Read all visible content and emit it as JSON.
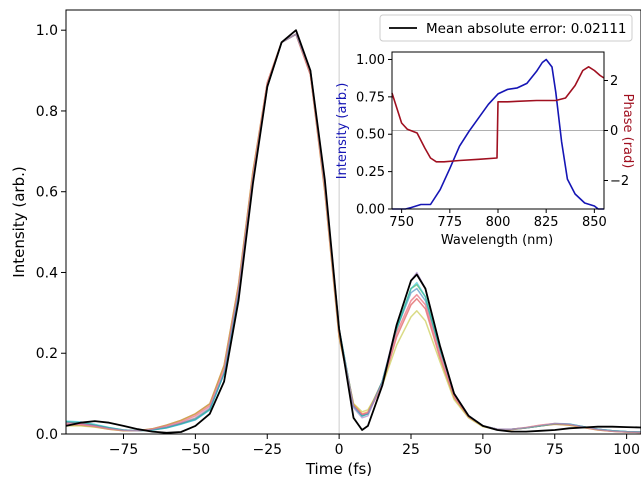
{
  "chart_data": [
    {
      "type": "line",
      "xlabel": "Time (fs)",
      "ylabel": "Intensity (arb.)",
      "xlim": [
        -95,
        105
      ],
      "ylim": [
        0,
        1.05
      ],
      "xticks": [
        -75,
        -50,
        -25,
        0,
        25,
        50,
        75,
        100
      ],
      "xtick_labels": [
        "−75",
        "−50",
        "−25",
        "0",
        "25",
        "50",
        "75",
        "100"
      ],
      "yticks": [
        0.0,
        0.2,
        0.4,
        0.6,
        0.8,
        1.0
      ],
      "ytick_labels": [
        "0.0",
        "0.2",
        "0.4",
        "0.6",
        "0.8",
        "1.0"
      ],
      "vline_x": 0,
      "legend": {
        "location": "top-right",
        "label": "Mean absolute error: 0.02111"
      },
      "series": [
        {
          "name": "Mean absolute error: 0.02111",
          "color": "#000000",
          "x": [
            -95,
            -90,
            -85,
            -80,
            -75,
            -70,
            -65,
            -60,
            -55,
            -50,
            -45,
            -40,
            -35,
            -30,
            -25,
            -20,
            -15,
            -10,
            -5,
            0,
            5,
            8,
            10,
            15,
            20,
            25,
            27,
            30,
            35,
            40,
            45,
            50,
            55,
            60,
            65,
            70,
            75,
            80,
            85,
            90,
            95,
            100,
            105
          ],
          "y": [
            0.02,
            0.028,
            0.032,
            0.028,
            0.02,
            0.012,
            0.006,
            0.003,
            0.005,
            0.02,
            0.05,
            0.13,
            0.33,
            0.62,
            0.86,
            0.97,
            1.0,
            0.9,
            0.63,
            0.26,
            0.04,
            0.01,
            0.02,
            0.12,
            0.27,
            0.38,
            0.395,
            0.36,
            0.22,
            0.1,
            0.045,
            0.02,
            0.01,
            0.006,
            0.006,
            0.008,
            0.01,
            0.014,
            0.016,
            0.018,
            0.018,
            0.017,
            0.016
          ]
        },
        {
          "name": "",
          "color": "#1f77b4",
          "x": [
            -95,
            -90,
            -85,
            -80,
            -75,
            -70,
            -65,
            -60,
            -55,
            -50,
            -45,
            -40,
            -35,
            -30,
            -25,
            -20,
            -15,
            -10,
            -5,
            0,
            5,
            8,
            10,
            15,
            20,
            25,
            27,
            30,
            35,
            40,
            45,
            50,
            55,
            60,
            65,
            70,
            75,
            80,
            85,
            90,
            95,
            100,
            105
          ],
          "y": [
            0.03,
            0.028,
            0.022,
            0.015,
            0.01,
            0.008,
            0.01,
            0.015,
            0.025,
            0.035,
            0.06,
            0.15,
            0.35,
            0.63,
            0.86,
            0.97,
            0.99,
            0.9,
            0.62,
            0.26,
            0.07,
            0.045,
            0.05,
            0.13,
            0.26,
            0.35,
            0.36,
            0.33,
            0.21,
            0.1,
            0.045,
            0.02,
            0.012,
            0.012,
            0.015,
            0.02,
            0.025,
            0.024,
            0.018,
            0.012,
            0.008,
            0.006,
            0.005
          ]
        },
        {
          "name": "",
          "color": "#ff7f0e",
          "x": [
            -95,
            -90,
            -85,
            -80,
            -75,
            -70,
            -65,
            -60,
            -55,
            -50,
            -45,
            -40,
            -35,
            -30,
            -25,
            -20,
            -15,
            -10,
            -5,
            0,
            5,
            8,
            10,
            15,
            20,
            25,
            27,
            30,
            35,
            40,
            45,
            50,
            55,
            60,
            65,
            70,
            75,
            80,
            85,
            90,
            95,
            100,
            105
          ],
          "y": [
            0.025,
            0.025,
            0.02,
            0.014,
            0.009,
            0.008,
            0.012,
            0.02,
            0.03,
            0.045,
            0.07,
            0.16,
            0.36,
            0.64,
            0.87,
            0.97,
            0.99,
            0.89,
            0.61,
            0.25,
            0.075,
            0.05,
            0.055,
            0.13,
            0.25,
            0.33,
            0.345,
            0.32,
            0.2,
            0.095,
            0.043,
            0.02,
            0.012,
            0.012,
            0.016,
            0.022,
            0.026,
            0.024,
            0.017,
            0.011,
            0.007,
            0.005,
            0.004
          ]
        },
        {
          "name": "",
          "color": "#2ca02c",
          "x": [
            -95,
            -90,
            -85,
            -80,
            -75,
            -70,
            -65,
            -60,
            -55,
            -50,
            -45,
            -40,
            -35,
            -30,
            -25,
            -20,
            -15,
            -10,
            -5,
            0,
            5,
            8,
            10,
            15,
            20,
            25,
            27,
            30,
            35,
            40,
            45,
            50,
            55,
            60,
            65,
            70,
            75,
            80,
            85,
            90,
            95,
            100,
            105
          ],
          "y": [
            0.03,
            0.028,
            0.022,
            0.015,
            0.01,
            0.008,
            0.01,
            0.016,
            0.026,
            0.038,
            0.062,
            0.15,
            0.35,
            0.63,
            0.86,
            0.97,
            0.99,
            0.9,
            0.62,
            0.26,
            0.07,
            0.045,
            0.05,
            0.13,
            0.26,
            0.36,
            0.37,
            0.34,
            0.21,
            0.1,
            0.045,
            0.02,
            0.012,
            0.012,
            0.015,
            0.02,
            0.025,
            0.024,
            0.018,
            0.012,
            0.008,
            0.006,
            0.005
          ]
        },
        {
          "name": "",
          "color": "#d62728",
          "x": [
            -95,
            -90,
            -85,
            -80,
            -75,
            -70,
            -65,
            -60,
            -55,
            -50,
            -45,
            -40,
            -35,
            -30,
            -25,
            -20,
            -15,
            -10,
            -5,
            0,
            5,
            8,
            10,
            15,
            20,
            25,
            27,
            30,
            35,
            40,
            45,
            50,
            55,
            60,
            65,
            70,
            75,
            80,
            85,
            90,
            95,
            100,
            105
          ],
          "y": [
            0.022,
            0.022,
            0.018,
            0.012,
            0.008,
            0.008,
            0.013,
            0.022,
            0.034,
            0.05,
            0.075,
            0.17,
            0.37,
            0.65,
            0.87,
            0.97,
            0.99,
            0.89,
            0.6,
            0.24,
            0.07,
            0.048,
            0.052,
            0.12,
            0.24,
            0.32,
            0.335,
            0.31,
            0.19,
            0.09,
            0.042,
            0.019,
            0.011,
            0.011,
            0.015,
            0.02,
            0.024,
            0.022,
            0.016,
            0.01,
            0.007,
            0.005,
            0.004
          ]
        },
        {
          "name": "",
          "color": "#9467bd",
          "x": [
            -95,
            -90,
            -85,
            -80,
            -75,
            -70,
            -65,
            -60,
            -55,
            -50,
            -45,
            -40,
            -35,
            -30,
            -25,
            -20,
            -15,
            -10,
            -5,
            0,
            5,
            8,
            10,
            15,
            20,
            25,
            27,
            30,
            35,
            40,
            45,
            50,
            55,
            60,
            65,
            70,
            75,
            80,
            85,
            90,
            95,
            100,
            105
          ],
          "y": [
            0.028,
            0.026,
            0.021,
            0.014,
            0.009,
            0.008,
            0.011,
            0.017,
            0.027,
            0.04,
            0.065,
            0.15,
            0.35,
            0.63,
            0.86,
            0.97,
            0.99,
            0.9,
            0.62,
            0.26,
            0.065,
            0.04,
            0.045,
            0.13,
            0.27,
            0.38,
            0.4,
            0.36,
            0.22,
            0.1,
            0.046,
            0.02,
            0.012,
            0.012,
            0.015,
            0.02,
            0.025,
            0.024,
            0.018,
            0.012,
            0.008,
            0.006,
            0.005
          ]
        },
        {
          "name": "",
          "color": "#bcbd22",
          "x": [
            -95,
            -90,
            -85,
            -80,
            -75,
            -70,
            -65,
            -60,
            -55,
            -50,
            -45,
            -40,
            -35,
            -30,
            -25,
            -20,
            -15,
            -10,
            -5,
            0,
            5,
            8,
            10,
            15,
            20,
            25,
            27,
            30,
            35,
            40,
            45,
            50,
            55,
            60,
            65,
            70,
            75,
            80,
            85,
            90,
            95,
            100,
            105
          ],
          "y": [
            0.02,
            0.02,
            0.017,
            0.012,
            0.008,
            0.008,
            0.013,
            0.022,
            0.034,
            0.05,
            0.075,
            0.17,
            0.37,
            0.65,
            0.87,
            0.97,
            0.99,
            0.89,
            0.6,
            0.24,
            0.075,
            0.055,
            0.06,
            0.12,
            0.22,
            0.29,
            0.305,
            0.28,
            0.18,
            0.085,
            0.04,
            0.018,
            0.011,
            0.011,
            0.015,
            0.02,
            0.024,
            0.022,
            0.016,
            0.01,
            0.007,
            0.005,
            0.004
          ]
        },
        {
          "name": "",
          "color": "#17becf",
          "x": [
            -95,
            -90,
            -85,
            -80,
            -75,
            -70,
            -65,
            -60,
            -55,
            -50,
            -45,
            -40,
            -35,
            -30,
            -25,
            -20,
            -15,
            -10,
            -5,
            0,
            5,
            8,
            10,
            15,
            20,
            25,
            27,
            30,
            35,
            40,
            45,
            50,
            55,
            60,
            65,
            70,
            75,
            80,
            85,
            90,
            95,
            100,
            105
          ],
          "y": [
            0.032,
            0.03,
            0.024,
            0.016,
            0.01,
            0.008,
            0.01,
            0.015,
            0.024,
            0.036,
            0.06,
            0.15,
            0.35,
            0.63,
            0.86,
            0.97,
            0.99,
            0.9,
            0.62,
            0.26,
            0.068,
            0.044,
            0.05,
            0.13,
            0.26,
            0.36,
            0.375,
            0.34,
            0.21,
            0.1,
            0.045,
            0.02,
            0.012,
            0.012,
            0.015,
            0.02,
            0.026,
            0.025,
            0.018,
            0.012,
            0.008,
            0.006,
            0.005
          ]
        },
        {
          "name": "",
          "color": "#e377c2",
          "x": [
            -95,
            -90,
            -85,
            -80,
            -75,
            -70,
            -65,
            -60,
            -55,
            -50,
            -45,
            -40,
            -35,
            -30,
            -25,
            -20,
            -15,
            -10,
            -5,
            0,
            5,
            8,
            10,
            15,
            20,
            25,
            27,
            30,
            35,
            40,
            45,
            50,
            55,
            60,
            65,
            70,
            75,
            80,
            85,
            90,
            95,
            100,
            105
          ],
          "y": [
            0.024,
            0.024,
            0.019,
            0.013,
            0.009,
            0.008,
            0.012,
            0.02,
            0.03,
            0.046,
            0.07,
            0.16,
            0.36,
            0.64,
            0.87,
            0.97,
            0.99,
            0.89,
            0.61,
            0.25,
            0.07,
            0.048,
            0.052,
            0.125,
            0.25,
            0.33,
            0.345,
            0.32,
            0.2,
            0.095,
            0.043,
            0.02,
            0.012,
            0.012,
            0.016,
            0.022,
            0.026,
            0.024,
            0.017,
            0.011,
            0.007,
            0.005,
            0.004
          ]
        }
      ]
    },
    {
      "type": "line",
      "xlabel": "Wavelength (nm)",
      "ylabel": "Intensity (arb.)",
      "ylabel_right": "Phase (rad)",
      "xlim": [
        745,
        855
      ],
      "ylim": [
        0,
        1.05
      ],
      "ylim_right": [
        -3.14,
        3.14
      ],
      "xticks": [
        750,
        775,
        800,
        825,
        850
      ],
      "xtick_labels": [
        "750",
        "775",
        "800",
        "825",
        "850"
      ],
      "yticks": [
        0.0,
        0.25,
        0.5,
        0.75,
        1.0
      ],
      "ytick_labels": [
        "0.00",
        "0.25",
        "0.50",
        "0.75",
        "1.00"
      ],
      "yticks_right": [
        -2,
        0,
        2
      ],
      "ytick_labels_right": [
        "−2",
        "0",
        "2"
      ],
      "hline_right_y": 0,
      "series": [
        {
          "name": "",
          "axis": "left",
          "color": "#1515b5",
          "x": [
            745,
            752,
            755,
            760,
            765,
            770,
            775,
            780,
            785,
            790,
            795,
            800,
            805,
            810,
            815,
            820,
            823,
            825,
            828,
            830,
            833,
            836,
            840,
            845,
            850,
            852,
            855
          ],
          "y": [
            0.0,
            0.0,
            0.01,
            0.03,
            0.03,
            0.13,
            0.27,
            0.42,
            0.52,
            0.61,
            0.7,
            0.77,
            0.8,
            0.81,
            0.84,
            0.92,
            0.98,
            1.0,
            0.95,
            0.78,
            0.45,
            0.2,
            0.1,
            0.04,
            0.02,
            0.0,
            0.0
          ]
        },
        {
          "name": "",
          "axis": "right",
          "color": "#a01020",
          "x": [
            745,
            750,
            753,
            758,
            762,
            765,
            768,
            772,
            780,
            790,
            799.5,
            800,
            805,
            810,
            820,
            830,
            835,
            840,
            844,
            847,
            850,
            853,
            855
          ],
          "y": [
            1.5,
            0.3,
            0.05,
            -0.1,
            -0.7,
            -1.1,
            -1.25,
            -1.25,
            -1.2,
            -1.15,
            -1.1,
            1.15,
            1.15,
            1.17,
            1.2,
            1.2,
            1.3,
            1.8,
            2.4,
            2.55,
            2.4,
            2.2,
            2.1
          ]
        }
      ]
    }
  ]
}
